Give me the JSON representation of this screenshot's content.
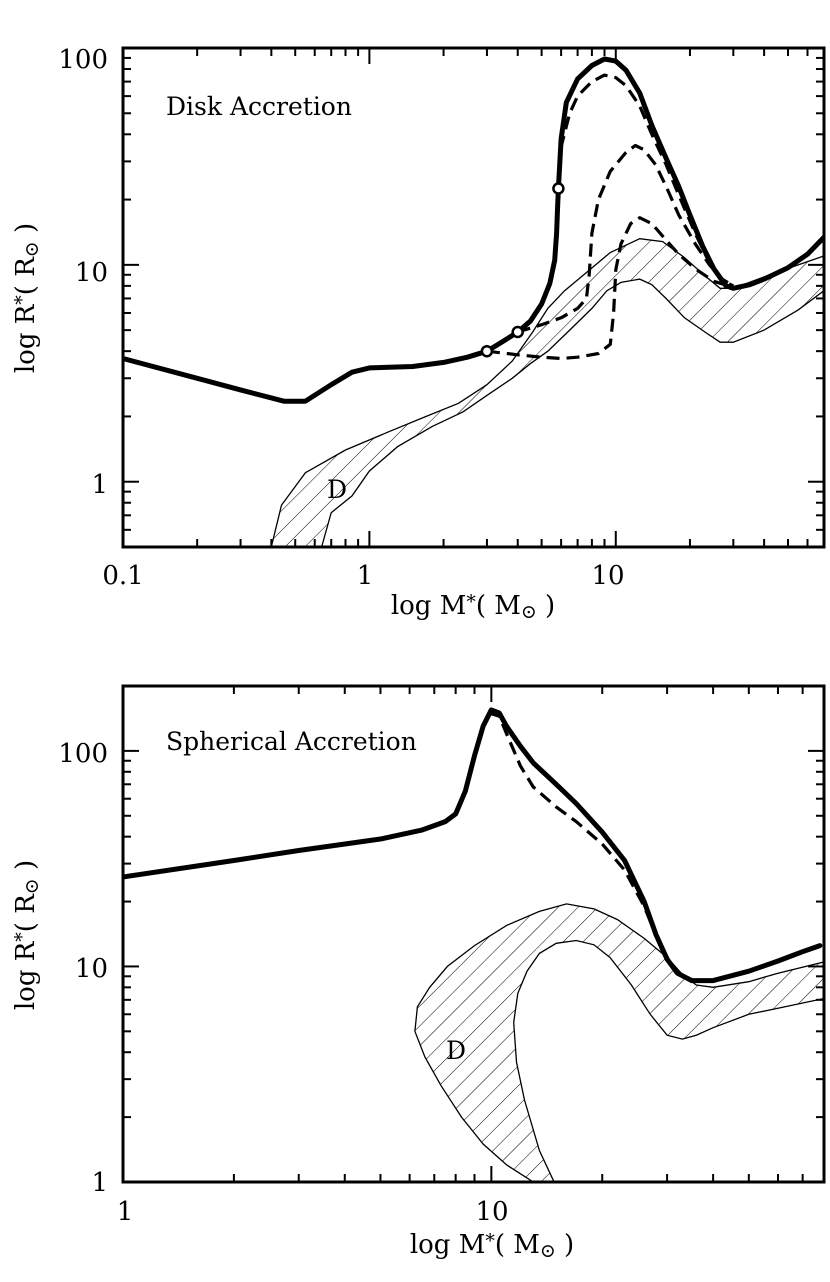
{
  "chart_data": [
    {
      "type": "line",
      "title": "Disk Accretion",
      "xlabel": {
        "prefix": "log M",
        "sub": "*",
        "unit_open": "( M",
        "unit_sub": "⊙",
        "unit_close": " )"
      },
      "ylabel": {
        "prefix": "log R",
        "sub": "*",
        "unit_open": "( R",
        "unit_sub": "⊙",
        "unit_close": " )"
      },
      "xscale": "log",
      "yscale": "log",
      "xlim": [
        0.1,
        70
      ],
      "ylim": [
        0.5,
        100
      ],
      "xticks": [
        {
          "v": 0.1,
          "label": "0.1"
        },
        {
          "v": 1,
          "label": "1"
        },
        {
          "v": 10,
          "label": "10"
        }
      ],
      "yticks": [
        {
          "v": 1,
          "label": "1"
        },
        {
          "v": 10,
          "label": "10"
        },
        {
          "v": 100,
          "label": "100"
        }
      ],
      "region_label": "D",
      "region": [
        [
          0.4,
          0.5
        ],
        [
          0.44,
          0.78
        ],
        [
          0.55,
          1.1
        ],
        [
          0.8,
          1.4
        ],
        [
          1.2,
          1.7
        ],
        [
          1.7,
          2.0
        ],
        [
          2.3,
          2.3
        ],
        [
          3.0,
          2.8
        ],
        [
          3.8,
          3.6
        ],
        [
          4.6,
          4.9
        ],
        [
          5.3,
          6.3
        ],
        [
          6.2,
          7.6
        ],
        [
          7.5,
          9.1
        ],
        [
          9.5,
          11.4
        ],
        [
          12.5,
          13.2
        ],
        [
          15.5,
          12.8
        ],
        [
          19.0,
          10.8
        ],
        [
          23.0,
          8.9
        ],
        [
          26.5,
          7.8
        ],
        [
          30.0,
          7.8
        ],
        [
          40.0,
          8.8
        ],
        [
          55.0,
          10.0
        ],
        [
          70.0,
          11.0
        ],
        [
          70.0,
          7.6
        ],
        [
          55.0,
          6.2
        ],
        [
          40.0,
          5.0
        ],
        [
          30.0,
          4.4
        ],
        [
          26.5,
          4.4
        ],
        [
          23.0,
          4.9
        ],
        [
          19.0,
          5.7
        ],
        [
          16.0,
          7.0
        ],
        [
          14.0,
          8.1
        ],
        [
          12.5,
          8.6
        ],
        [
          10.5,
          8.3
        ],
        [
          9.2,
          7.6
        ],
        [
          8.0,
          6.3
        ],
        [
          6.5,
          5.0
        ],
        [
          5.3,
          4.0
        ],
        [
          4.5,
          3.5
        ],
        [
          3.8,
          3.0
        ],
        [
          3.0,
          2.5
        ],
        [
          2.4,
          2.1
        ],
        [
          1.8,
          1.8
        ],
        [
          1.3,
          1.45
        ],
        [
          1.0,
          1.12
        ],
        [
          0.85,
          0.86
        ],
        [
          0.7,
          0.72
        ],
        [
          0.64,
          0.5
        ]
      ],
      "series": [
        {
          "name": "solid",
          "style": "solid",
          "points": [
            [
              0.1,
              3.7
            ],
            [
              0.2,
              3.0
            ],
            [
              0.3,
              2.65
            ],
            [
              0.45,
              2.35
            ],
            [
              0.55,
              2.35
            ],
            [
              0.7,
              2.8
            ],
            [
              0.85,
              3.2
            ],
            [
              1.0,
              3.35
            ],
            [
              1.5,
              3.4
            ],
            [
              2.0,
              3.55
            ],
            [
              2.5,
              3.75
            ],
            [
              3.0,
              4.0
            ],
            [
              3.5,
              4.45
            ],
            [
              4.0,
              4.9
            ],
            [
              4.5,
              5.5
            ],
            [
              5.0,
              6.6
            ],
            [
              5.4,
              8.2
            ],
            [
              5.65,
              10.5
            ],
            [
              5.75,
              14.0
            ],
            [
              5.8,
              18.0
            ],
            [
              5.85,
              22.5
            ],
            [
              6.0,
              38.0
            ],
            [
              6.3,
              56.0
            ],
            [
              7.0,
              72.0
            ],
            [
              8.0,
              83.0
            ],
            [
              9.0,
              89.0
            ],
            [
              10.0,
              87.0
            ],
            [
              11.0,
              79.0
            ],
            [
              12.5,
              62.0
            ],
            [
              14.0,
              44.0
            ],
            [
              16.0,
              31.0
            ],
            [
              18.0,
              23.0
            ],
            [
              20.0,
              17.0
            ],
            [
              22.5,
              12.2
            ],
            [
              25.0,
              9.6
            ],
            [
              28.0,
              8.0
            ],
            [
              30.0,
              7.8
            ],
            [
              35.0,
              8.1
            ],
            [
              40.0,
              8.6
            ],
            [
              50.0,
              9.7
            ],
            [
              60.0,
              11.2
            ],
            [
              70.0,
              13.4
            ]
          ]
        },
        {
          "name": "dashed-1",
          "style": "dashed",
          "points": [
            [
              5.8,
              22.5
            ],
            [
              6.0,
              35.0
            ],
            [
              6.5,
              50.0
            ],
            [
              7.0,
              60.0
            ],
            [
              8.0,
              70.0
            ],
            [
              9.0,
              75.0
            ],
            [
              10.0,
              73.0
            ],
            [
              11.0,
              67.0
            ],
            [
              12.5,
              54.0
            ],
            [
              14.0,
              40.0
            ],
            [
              16.0,
              29.0
            ],
            [
              18.0,
              21.0
            ],
            [
              21.0,
              14.0
            ],
            [
              24.0,
              10.2
            ],
            [
              27.0,
              8.5
            ],
            [
              30.0,
              8.0
            ]
          ]
        },
        {
          "name": "dashed-2",
          "style": "dashed",
          "points": [
            [
              4.0,
              4.9
            ],
            [
              5.0,
              5.3
            ],
            [
              6.0,
              5.7
            ],
            [
              7.0,
              6.3
            ],
            [
              7.6,
              7.0
            ],
            [
              7.8,
              9.0
            ],
            [
              8.0,
              14.0
            ],
            [
              8.5,
              20.0
            ],
            [
              9.5,
              27.0
            ],
            [
              11.0,
              33.0
            ],
            [
              12.0,
              35.5
            ],
            [
              13.0,
              34.0
            ],
            [
              14.5,
              29.0
            ],
            [
              16.0,
              23.0
            ],
            [
              18.0,
              17.0
            ],
            [
              21.0,
              12.5
            ],
            [
              24.0,
              10.0
            ],
            [
              27.0,
              8.6
            ],
            [
              30.0,
              8.0
            ]
          ]
        },
        {
          "name": "dashed-3",
          "style": "dashed",
          "points": [
            [
              3.0,
              4.0
            ],
            [
              4.0,
              3.85
            ],
            [
              5.0,
              3.75
            ],
            [
              6.0,
              3.7
            ],
            [
              7.0,
              3.75
            ],
            [
              8.5,
              3.9
            ],
            [
              9.5,
              4.3
            ],
            [
              9.8,
              6.0
            ],
            [
              10.0,
              9.5
            ],
            [
              10.5,
              12.5
            ],
            [
              11.5,
              15.5
            ],
            [
              12.5,
              16.5
            ],
            [
              14.0,
              15.5
            ],
            [
              16.0,
              13.0
            ],
            [
              18.0,
              11.2
            ],
            [
              21.0,
              9.6
            ],
            [
              25.0,
              8.4
            ],
            [
              30.0,
              7.9
            ]
          ]
        }
      ],
      "markers": [
        [
          3.0,
          4.0
        ],
        [
          4.0,
          4.9
        ],
        [
          5.85,
          22.5
        ]
      ]
    },
    {
      "type": "line",
      "title": "Spherical Accretion",
      "xlabel": {
        "prefix": "log M",
        "sub": "*",
        "unit_open": "( M",
        "unit_sub": "⊙",
        "unit_close": " )"
      },
      "ylabel": {
        "prefix": "log R",
        "sub": "*",
        "unit_open": "( R",
        "unit_sub": "⊙",
        "unit_close": " )"
      },
      "xscale": "log",
      "yscale": "log",
      "xlim": [
        1,
        80
      ],
      "ylim": [
        1,
        200
      ],
      "xticks": [
        {
          "v": 1,
          "label": "1"
        },
        {
          "v": 10,
          "label": "10"
        }
      ],
      "yticks": [
        {
          "v": 1,
          "label": "1"
        },
        {
          "v": 10,
          "label": "10"
        },
        {
          "v": 100,
          "label": "100"
        }
      ],
      "region_label": "D",
      "region": [
        [
          13.0,
          1.0
        ],
        [
          11.0,
          1.2
        ],
        [
          9.5,
          1.5
        ],
        [
          8.3,
          2.0
        ],
        [
          7.3,
          2.8
        ],
        [
          6.6,
          3.8
        ],
        [
          6.2,
          5.0
        ],
        [
          6.3,
          6.5
        ],
        [
          6.8,
          8.0
        ],
        [
          7.6,
          10.0
        ],
        [
          9.0,
          12.5
        ],
        [
          11.0,
          15.5
        ],
        [
          13.5,
          18.0
        ],
        [
          16.0,
          19.5
        ],
        [
          19.0,
          18.5
        ],
        [
          22.0,
          16.5
        ],
        [
          26.0,
          13.5
        ],
        [
          30.0,
          11.0
        ],
        [
          33.0,
          9.2
        ],
        [
          36.0,
          8.2
        ],
        [
          40.0,
          8.0
        ],
        [
          50.0,
          8.5
        ],
        [
          60.0,
          9.3
        ],
        [
          80.0,
          10.5
        ],
        [
          80.0,
          7.1
        ],
        [
          60.0,
          6.4
        ],
        [
          50.0,
          6.0
        ],
        [
          40.0,
          5.2
        ],
        [
          36.0,
          4.8
        ],
        [
          33.0,
          4.6
        ],
        [
          30.0,
          4.8
        ],
        [
          27.0,
          6.0
        ],
        [
          24.0,
          8.2
        ],
        [
          21.0,
          11.0
        ],
        [
          19.0,
          12.6
        ],
        [
          17.0,
          13.2
        ],
        [
          15.0,
          12.8
        ],
        [
          13.5,
          11.5
        ],
        [
          12.5,
          9.5
        ],
        [
          11.8,
          7.5
        ],
        [
          11.5,
          5.5
        ],
        [
          11.7,
          3.6
        ],
        [
          12.3,
          2.4
        ],
        [
          13.5,
          1.4
        ],
        [
          14.8,
          1.0
        ]
      ],
      "series": [
        {
          "name": "solid",
          "style": "solid",
          "points": [
            [
              1.0,
              26.0
            ],
            [
              2.0,
              31.0
            ],
            [
              3.0,
              34.5
            ],
            [
              5.0,
              39.0
            ],
            [
              6.5,
              43.0
            ],
            [
              7.5,
              47.0
            ],
            [
              8.0,
              51.0
            ],
            [
              8.5,
              65.0
            ],
            [
              9.0,
              95.0
            ],
            [
              9.5,
              130.0
            ],
            [
              10.0,
              155.0
            ],
            [
              10.5,
              150.0
            ],
            [
              11.0,
              130.0
            ],
            [
              12.0,
              105.0
            ],
            [
              13.0,
              88.0
            ],
            [
              15.0,
              70.0
            ],
            [
              17.0,
              57.0
            ],
            [
              20.0,
              42.0
            ],
            [
              23.0,
              31.0
            ],
            [
              26.0,
              20.0
            ],
            [
              28.0,
              14.0
            ],
            [
              30.0,
              10.8
            ],
            [
              32.0,
              9.3
            ],
            [
              35.0,
              8.6
            ],
            [
              40.0,
              8.6
            ],
            [
              50.0,
              9.5
            ],
            [
              60.0,
              10.6
            ],
            [
              70.0,
              11.7
            ],
            [
              78.0,
              12.5
            ]
          ]
        },
        {
          "name": "dashed-1",
          "style": "dashed",
          "points": [
            [
              9.8,
              150.0
            ],
            [
              10.5,
              145.0
            ],
            [
              11.0,
              120.0
            ],
            [
              12.0,
              85.0
            ],
            [
              13.0,
              68.0
            ],
            [
              15.0,
              55.0
            ],
            [
              17.0,
              47.0
            ],
            [
              20.0,
              37.0
            ],
            [
              23.0,
              28.0
            ],
            [
              26.0,
              19.0
            ],
            [
              29.0,
              12.0
            ],
            [
              32.0,
              9.4
            ],
            [
              35.0,
              8.6
            ]
          ]
        }
      ],
      "markers": []
    }
  ]
}
